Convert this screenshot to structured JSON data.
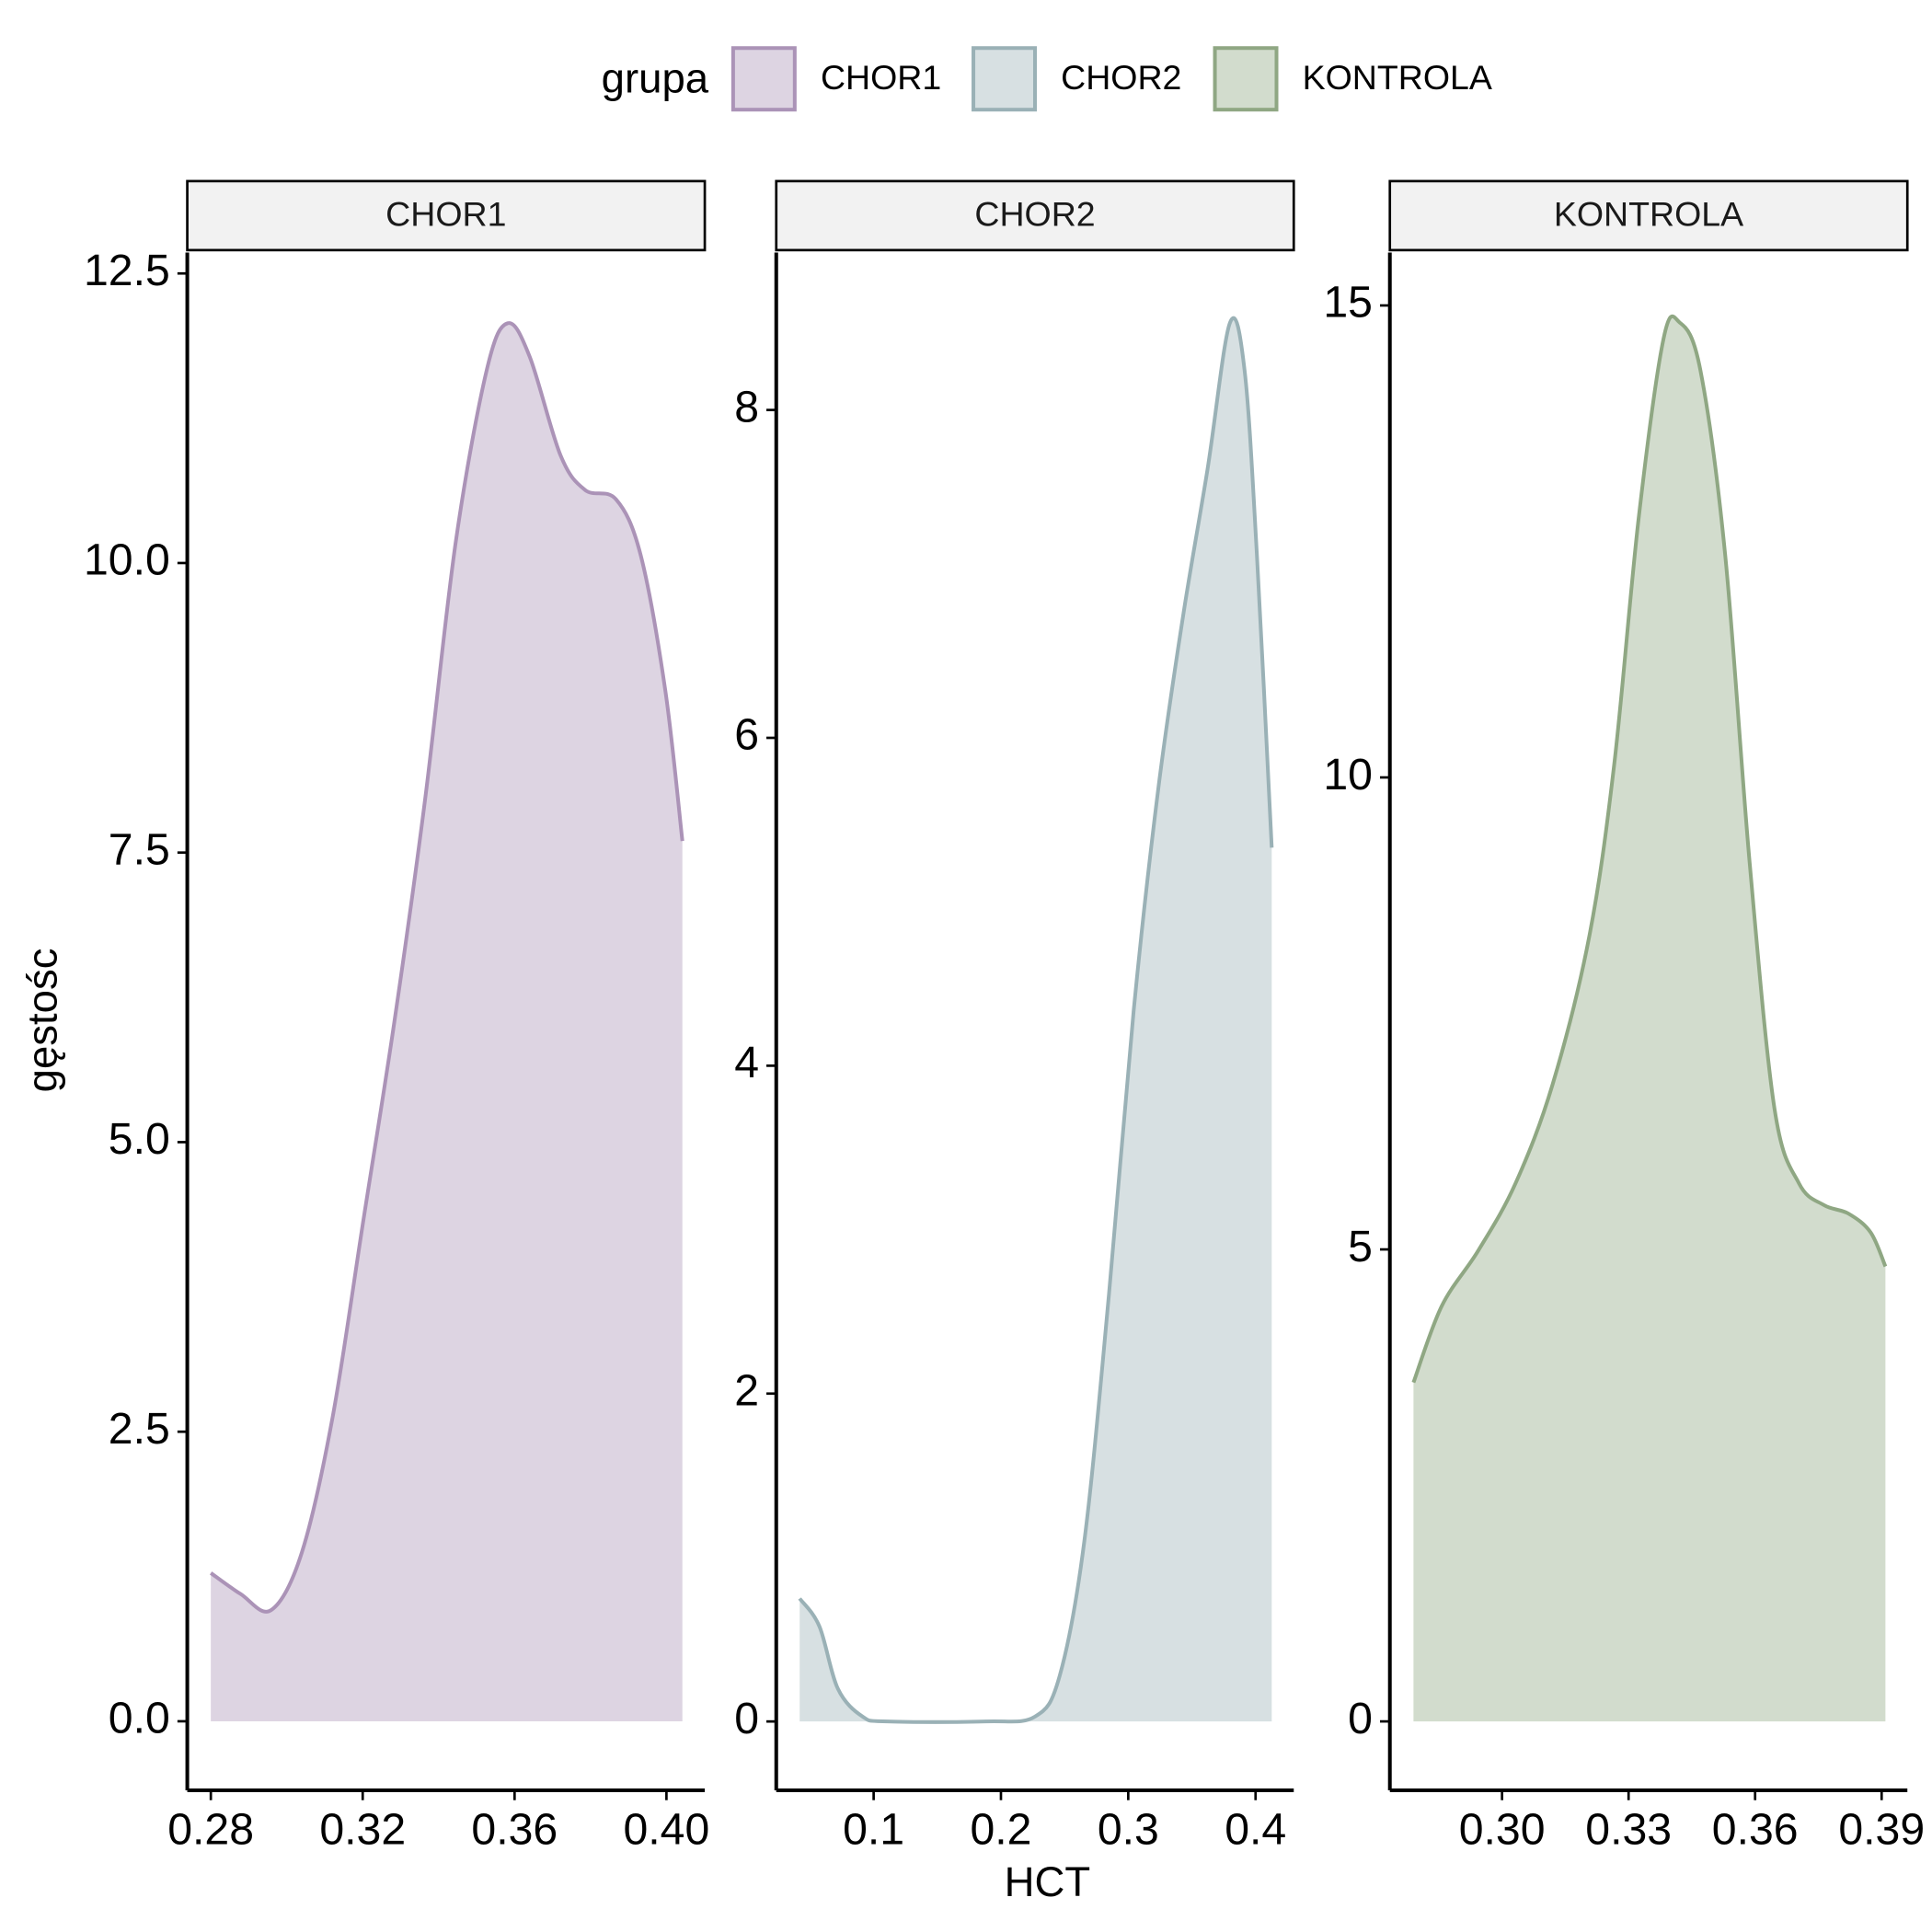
{
  "legend": {
    "title": "grupa"
  },
  "x_label": "HCT",
  "y_label": "gęstośc",
  "chart_data": [
    {
      "type": "area",
      "series": [
        {
          "name": "CHOR1",
          "color": "#ab93b7",
          "values": [
            1.28,
            1.1,
            0.96,
            1.46,
            2.63,
            4.33,
            6.03,
            7.95,
            10.18,
            11.67,
            12.07,
            11.78,
            10.93,
            10.63,
            10.55,
            10.07,
            8.9,
            7.6
          ]
        }
      ],
      "x": [
        0.28,
        0.2878,
        0.2959,
        0.304,
        0.3121,
        0.3202,
        0.3283,
        0.3364,
        0.3445,
        0.3527,
        0.3582,
        0.364,
        0.3721,
        0.3786,
        0.3867,
        0.3932,
        0.3997,
        0.4042
      ],
      "xlim": [
        0.2738,
        0.4101
      ],
      "ylim": [
        -0.596,
        12.68
      ],
      "xticks": [
        0.28,
        0.32,
        0.36,
        {
          "value": 0.4,
          "label": "0.40"
        }
      ],
      "yticks": [
        {
          "value": 0,
          "label": "0.0"
        },
        2.5,
        {
          "value": 5,
          "label": "5.0"
        },
        7.5,
        {
          "value": 10,
          "label": "10.0"
        },
        12.5
      ]
    },
    {
      "type": "area",
      "series": [
        {
          "name": "CHOR2",
          "color": "#9ab1b6",
          "values": [
            0.75,
            0.58,
            0.2,
            0.03,
            0,
            0,
            0.03,
            0.28,
            1.1,
            2.61,
            4.34,
            5.69,
            6.74,
            7.64,
            8.53,
            8.24,
            7.11,
            5.33
          ]
        }
      ],
      "x": [
        0.0419,
        0.0574,
        0.0719,
        0.0913,
        0.1106,
        0.1881,
        0.2268,
        0.2462,
        0.2655,
        0.2849,
        0.3043,
        0.3236,
        0.343,
        0.3623,
        0.3798,
        0.3914,
        0.4011,
        0.4127
      ],
      "xlim": [
        0.0235,
        0.43
      ],
      "ylim": [
        -0.42,
        8.96
      ],
      "xticks": [
        0.1,
        0.2,
        0.3,
        0.4
      ],
      "yticks": [
        0,
        2,
        4,
        6,
        8
      ]
    },
    {
      "type": "area",
      "series": [
        {
          "name": "KONTROLA",
          "color": "#8fa783",
          "values": [
            3.59,
            4.4,
            4.99,
            5.7,
            6.75,
            8.32,
            10.14,
            12.75,
            14.65,
            14.82,
            14.32,
            12.36,
            9.1,
            6.49,
            5.7,
            5.47,
            5.38,
            5.18,
            4.82
          ]
        }
      ],
      "x": [
        0.279,
        0.2857,
        0.2944,
        0.3032,
        0.312,
        0.3207,
        0.3266,
        0.3324,
        0.3383,
        0.3421,
        0.347,
        0.3529,
        0.3587,
        0.3646,
        0.3704,
        0.3763,
        0.3821,
        0.3874,
        0.3909
      ],
      "xlim": [
        0.2734,
        0.3961
      ],
      "ylim": [
        -0.73,
        15.56
      ],
      "xticks": [
        {
          "value": 0.3,
          "label": "0.30"
        },
        0.33,
        0.36,
        0.39
      ],
      "yticks": [
        0,
        5,
        10,
        15
      ]
    }
  ]
}
